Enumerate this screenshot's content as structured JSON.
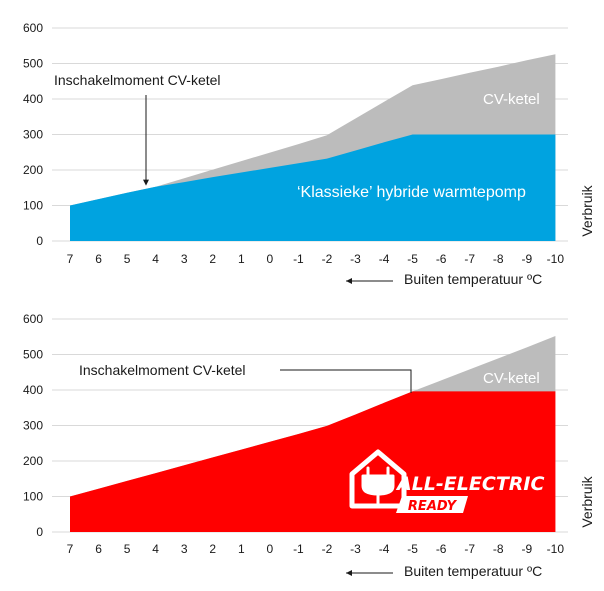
{
  "chart_data": [
    {
      "type": "area",
      "x": [
        "7",
        "6",
        "5",
        "4",
        "3",
        "2",
        "1",
        "0",
        "-1",
        "-2",
        "-3",
        "-4",
        "-5",
        "-6",
        "-7",
        "-8",
        "-9",
        "-10"
      ],
      "ylim": [
        0,
        600
      ],
      "yticks": [
        "0",
        "100",
        "200",
        "300",
        "400",
        "500",
        "600"
      ],
      "xlabel": "Buiten temperatuur ºC",
      "ylabel": "Verbruik",
      "grid": "horizontal",
      "series": [
        {
          "name": "CV-ketel",
          "color": "#bcbcbc",
          "values": [
            100,
            118,
            136,
            153,
            177,
            201,
            225,
            249,
            273,
            298,
            345,
            392,
            439,
            456,
            474,
            491,
            509,
            526
          ]
        },
        {
          "name": "‘Klassieke’ hybride warmtepomp",
          "color": "#00a3e0",
          "values": [
            100,
            118,
            136,
            153,
            166,
            180,
            193,
            206,
            219,
            232,
            255,
            278,
            300,
            300,
            300,
            300,
            300,
            300
          ]
        }
      ],
      "annotations": [
        {
          "text": "Inschakelmoment CV-ketel",
          "x": "4"
        }
      ]
    },
    {
      "type": "area",
      "x": [
        "7",
        "6",
        "5",
        "4",
        "3",
        "2",
        "1",
        "0",
        "-1",
        "-2",
        "-3",
        "-4",
        "-5",
        "-6",
        "-7",
        "-8",
        "-9",
        "-10"
      ],
      "ylim": [
        0,
        600
      ],
      "yticks": [
        "0",
        "100",
        "200",
        "300",
        "400",
        "500",
        "600"
      ],
      "xlabel": "Buiten temperatuur ºC",
      "ylabel": "Verbruik",
      "grid": "horizontal",
      "series": [
        {
          "name": "CV-ketel",
          "color": "#bcbcbc",
          "values": [
            100,
            122,
            144,
            166,
            188,
            210,
            232,
            254,
            276,
            299,
            331,
            364,
            396,
            427,
            458,
            489,
            520,
            552
          ]
        },
        {
          "name": "",
          "color": "#ff0000",
          "values": [
            100,
            122,
            144,
            166,
            188,
            210,
            232,
            254,
            276,
            299,
            331,
            364,
            396,
            396,
            396,
            396,
            396,
            396
          ]
        }
      ],
      "annotations": [
        {
          "text": "Inschakelmoment CV-ketel",
          "x": "-5"
        }
      ],
      "logo": {
        "line1": "ALL-ELECTRIC",
        "line2": "READY",
        "color": "#ff0000"
      }
    }
  ]
}
